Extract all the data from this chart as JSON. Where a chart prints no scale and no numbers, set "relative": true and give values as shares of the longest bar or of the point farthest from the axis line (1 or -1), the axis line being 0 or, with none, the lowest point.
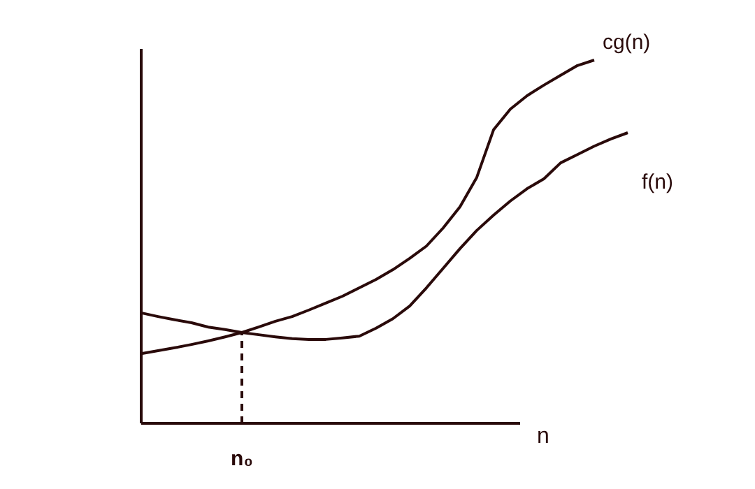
{
  "chart_data": {
    "type": "line",
    "relative": true,
    "xlabel": "n",
    "grid": false,
    "legend": false,
    "marker": "none",
    "line_style": "solid",
    "annotations": [
      "n₀"
    ],
    "categories": [
      null,
      null,
      null,
      null,
      null,
      null,
      null,
      null,
      null,
      null,
      null,
      null,
      null,
      null,
      null,
      null,
      null,
      null,
      null,
      null,
      null,
      null,
      null,
      null,
      null,
      null,
      null,
      null,
      null,
      null
    ],
    "series": [
      {
        "name": "cg(n)",
        "color": "#2a0a0a",
        "values": [
          0.192,
          0.2,
          0.208,
          0.217,
          0.227,
          0.238,
          0.25,
          0.265,
          0.281,
          0.294,
          0.312,
          0.331,
          0.35,
          0.373,
          0.396,
          0.423,
          0.454,
          0.488,
          0.538,
          0.596,
          0.677,
          0.808,
          0.865,
          0.902,
          0.931,
          0.958,
          0.985,
          1,
          null,
          null
        ]
      },
      {
        "name": "f(n)",
        "color": "#2a0a0a",
        "values": [
          0.304,
          0.294,
          0.285,
          0.277,
          0.265,
          0.258,
          0.25,
          0.244,
          0.238,
          0.233,
          0.231,
          0.231,
          0.235,
          0.24,
          0.262,
          0.288,
          0.323,
          0.373,
          0.427,
          0.481,
          0.531,
          0.573,
          0.612,
          0.646,
          0.673,
          0.717,
          0.74,
          0.763,
          0.783,
          0.8
        ]
      }
    ]
  }
}
